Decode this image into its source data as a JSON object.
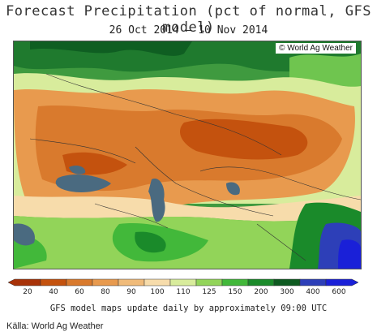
{
  "title": "Forecast Precipitation (pct of normal, GFS model)",
  "subtitle": "26 Oct 2014 — 10 Nov 2014",
  "copyright": "© World Ag Weather",
  "footer_note": "GFS model maps update daily by approximately 09:00 UTC",
  "source": "Källa: World Ag Weather",
  "legend": {
    "labels": [
      "20",
      "40",
      "60",
      "80",
      "90",
      "100",
      "110",
      "125",
      "150",
      "200",
      "300",
      "400",
      "600"
    ],
    "colors": [
      "#a83208",
      "#c4520e",
      "#d97a2d",
      "#e89a4e",
      "#f0bb7a",
      "#f7dcab",
      "#d8ec9c",
      "#92d459",
      "#42b83a",
      "#1a8a2a",
      "#0d5a20",
      "#2d3fb8",
      "#1a20d8"
    ]
  },
  "colors": {
    "water": "#4a6a80",
    "land_dry": "#d4783a",
    "land_wet": "#2f8f3a"
  }
}
